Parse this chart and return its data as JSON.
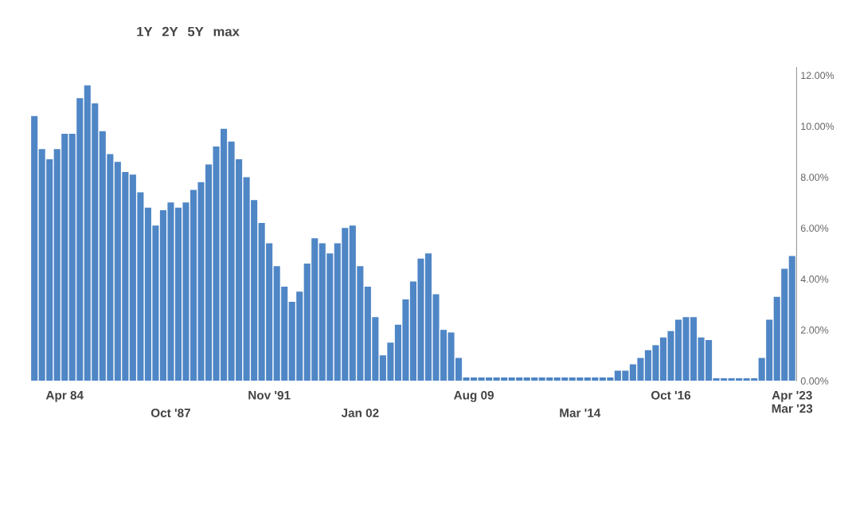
{
  "chart_data": {
    "type": "bar",
    "categories": [
      null,
      null,
      null,
      null,
      "Apr 84",
      null,
      null,
      null,
      null,
      null,
      null,
      null,
      null,
      null,
      null,
      null,
      null,
      null,
      "Oct '87",
      null,
      null,
      null,
      null,
      null,
      null,
      null,
      null,
      null,
      null,
      null,
      null,
      "Nov '91",
      null,
      null,
      null,
      null,
      null,
      null,
      null,
      null,
      null,
      null,
      null,
      "Jan 02",
      null,
      null,
      null,
      null,
      null,
      null,
      null,
      null,
      null,
      null,
      null,
      null,
      null,
      null,
      "Aug 09",
      null,
      null,
      null,
      null,
      null,
      null,
      null,
      null,
      null,
      null,
      null,
      null,
      null,
      "Mar '14",
      null,
      null,
      null,
      null,
      null,
      null,
      null,
      null,
      null,
      null,
      null,
      "Oct '16",
      null,
      null,
      null,
      null,
      null,
      null,
      null,
      null,
      null,
      null,
      null,
      null,
      null,
      null,
      null,
      "Apr '23"
    ],
    "values": [
      10.4,
      9.1,
      8.7,
      9.1,
      9.7,
      9.7,
      11.1,
      11.6,
      10.9,
      9.8,
      8.9,
      8.6,
      8.2,
      8.1,
      7.4,
      6.8,
      6.1,
      6.7,
      7.0,
      6.8,
      7.0,
      7.5,
      7.8,
      8.5,
      9.2,
      9.9,
      9.4,
      8.7,
      8.0,
      7.1,
      6.2,
      5.4,
      4.5,
      3.7,
      3.1,
      3.5,
      4.6,
      5.6,
      5.4,
      5.0,
      5.4,
      6.0,
      6.1,
      4.5,
      3.7,
      2.5,
      1.0,
      1.5,
      2.2,
      3.2,
      3.9,
      4.8,
      5.0,
      3.4,
      2.0,
      1.9,
      0.9,
      0.13,
      0.13,
      0.13,
      0.13,
      0.13,
      0.13,
      0.13,
      0.13,
      0.13,
      0.13,
      0.13,
      0.13,
      0.13,
      0.13,
      0.13,
      0.13,
      0.13,
      0.13,
      0.13,
      0.13,
      0.4,
      0.4,
      0.65,
      0.9,
      1.2,
      1.4,
      1.7,
      1.95,
      2.4,
      2.5,
      2.5,
      1.7,
      1.6,
      0.1,
      0.1,
      0.1,
      0.1,
      0.1,
      0.1,
      0.9,
      2.4,
      3.3,
      4.4,
      4.9
    ],
    "color": "#4f86c6",
    "ylim": [
      0,
      12.3
    ],
    "yticks": [
      {
        "value": 0,
        "label": "0.00%"
      },
      {
        "value": 2,
        "label": "2.00%"
      },
      {
        "value": 4,
        "label": "4.00%"
      },
      {
        "value": 6,
        "label": "6.00%"
      },
      {
        "value": 8,
        "label": "8.00%"
      },
      {
        "value": 10,
        "label": "10.00%"
      },
      {
        "value": 12,
        "label": "12.00%"
      }
    ],
    "grid": false,
    "annotations": [
      "1Y",
      "2Y",
      "5Y",
      "max",
      "Mar '23"
    ]
  }
}
